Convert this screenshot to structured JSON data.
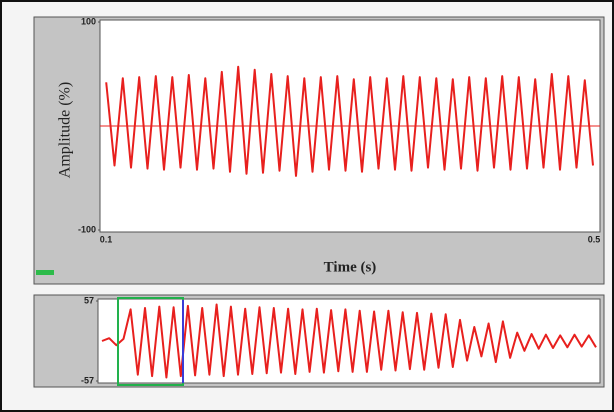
{
  "chart_data": [
    {
      "type": "line",
      "x_label": "Time (s)",
      "y_label": "Amplitude (%)",
      "xlim": [
        0.1,
        0.5
      ],
      "xticks": [
        0.1,
        0.5
      ],
      "ylim": [
        -100,
        100
      ],
      "yticks": [
        -100,
        100
      ],
      "reference_line": 0,
      "color": "#e8201e",
      "x": [
        0.105,
        0.1116,
        0.1182,
        0.1248,
        0.1314,
        0.138,
        0.1446,
        0.1512,
        0.1578,
        0.1644,
        0.171,
        0.1776,
        0.1842,
        0.1908,
        0.1974,
        0.204,
        0.2106,
        0.2172,
        0.2238,
        0.2304,
        0.237,
        0.2436,
        0.2502,
        0.2568,
        0.2634,
        0.27,
        0.2766,
        0.2832,
        0.2898,
        0.2964,
        0.303,
        0.3096,
        0.3162,
        0.3228,
        0.3294,
        0.336,
        0.3426,
        0.3492,
        0.3558,
        0.3624,
        0.369,
        0.3756,
        0.3822,
        0.3888,
        0.3954,
        0.402,
        0.4086,
        0.4152,
        0.4218,
        0.4284,
        0.435,
        0.4416,
        0.4482,
        0.4548,
        0.4614,
        0.468,
        0.4746,
        0.4812,
        0.4878,
        0.4944
      ],
      "values": [
        42,
        -38,
        46,
        -40,
        47,
        -41,
        48,
        -42,
        47,
        -40,
        49,
        -42,
        46,
        -41,
        52,
        -44,
        57,
        -46,
        54,
        -45,
        50,
        -43,
        48,
        -48,
        46,
        -44,
        47,
        -42,
        48,
        -43,
        45,
        -44,
        47,
        -41,
        46,
        -42,
        48,
        -43,
        47,
        -40,
        46,
        -42,
        45,
        -41,
        47,
        -43,
        46,
        -40,
        48,
        -42,
        47,
        -41,
        45,
        -40,
        50,
        -42,
        48,
        -40,
        44,
        -38
      ]
    },
    {
      "type": "line",
      "ylim": [
        -57,
        57
      ],
      "yticks": [
        -57,
        57
      ],
      "color": "#e8201e",
      "values": [
        0,
        4,
        -6,
        3,
        45,
        -48,
        47,
        -50,
        49,
        -52,
        48,
        -50,
        50,
        -49,
        47,
        -48,
        52,
        -50,
        49,
        -48,
        46,
        -47,
        48,
        -46,
        47,
        -45,
        46,
        -47,
        45,
        -44,
        46,
        -45,
        44,
        -43,
        45,
        -44,
        43,
        -44,
        42,
        -41,
        43,
        -42,
        41,
        -40,
        40,
        -41,
        39,
        -38,
        38,
        -37,
        30,
        -28,
        20,
        -22,
        25,
        -30,
        28,
        -24,
        12,
        -14,
        10,
        -11,
        9,
        -10,
        8,
        -9,
        9,
        -8,
        8,
        -9
      ]
    }
  ]
}
